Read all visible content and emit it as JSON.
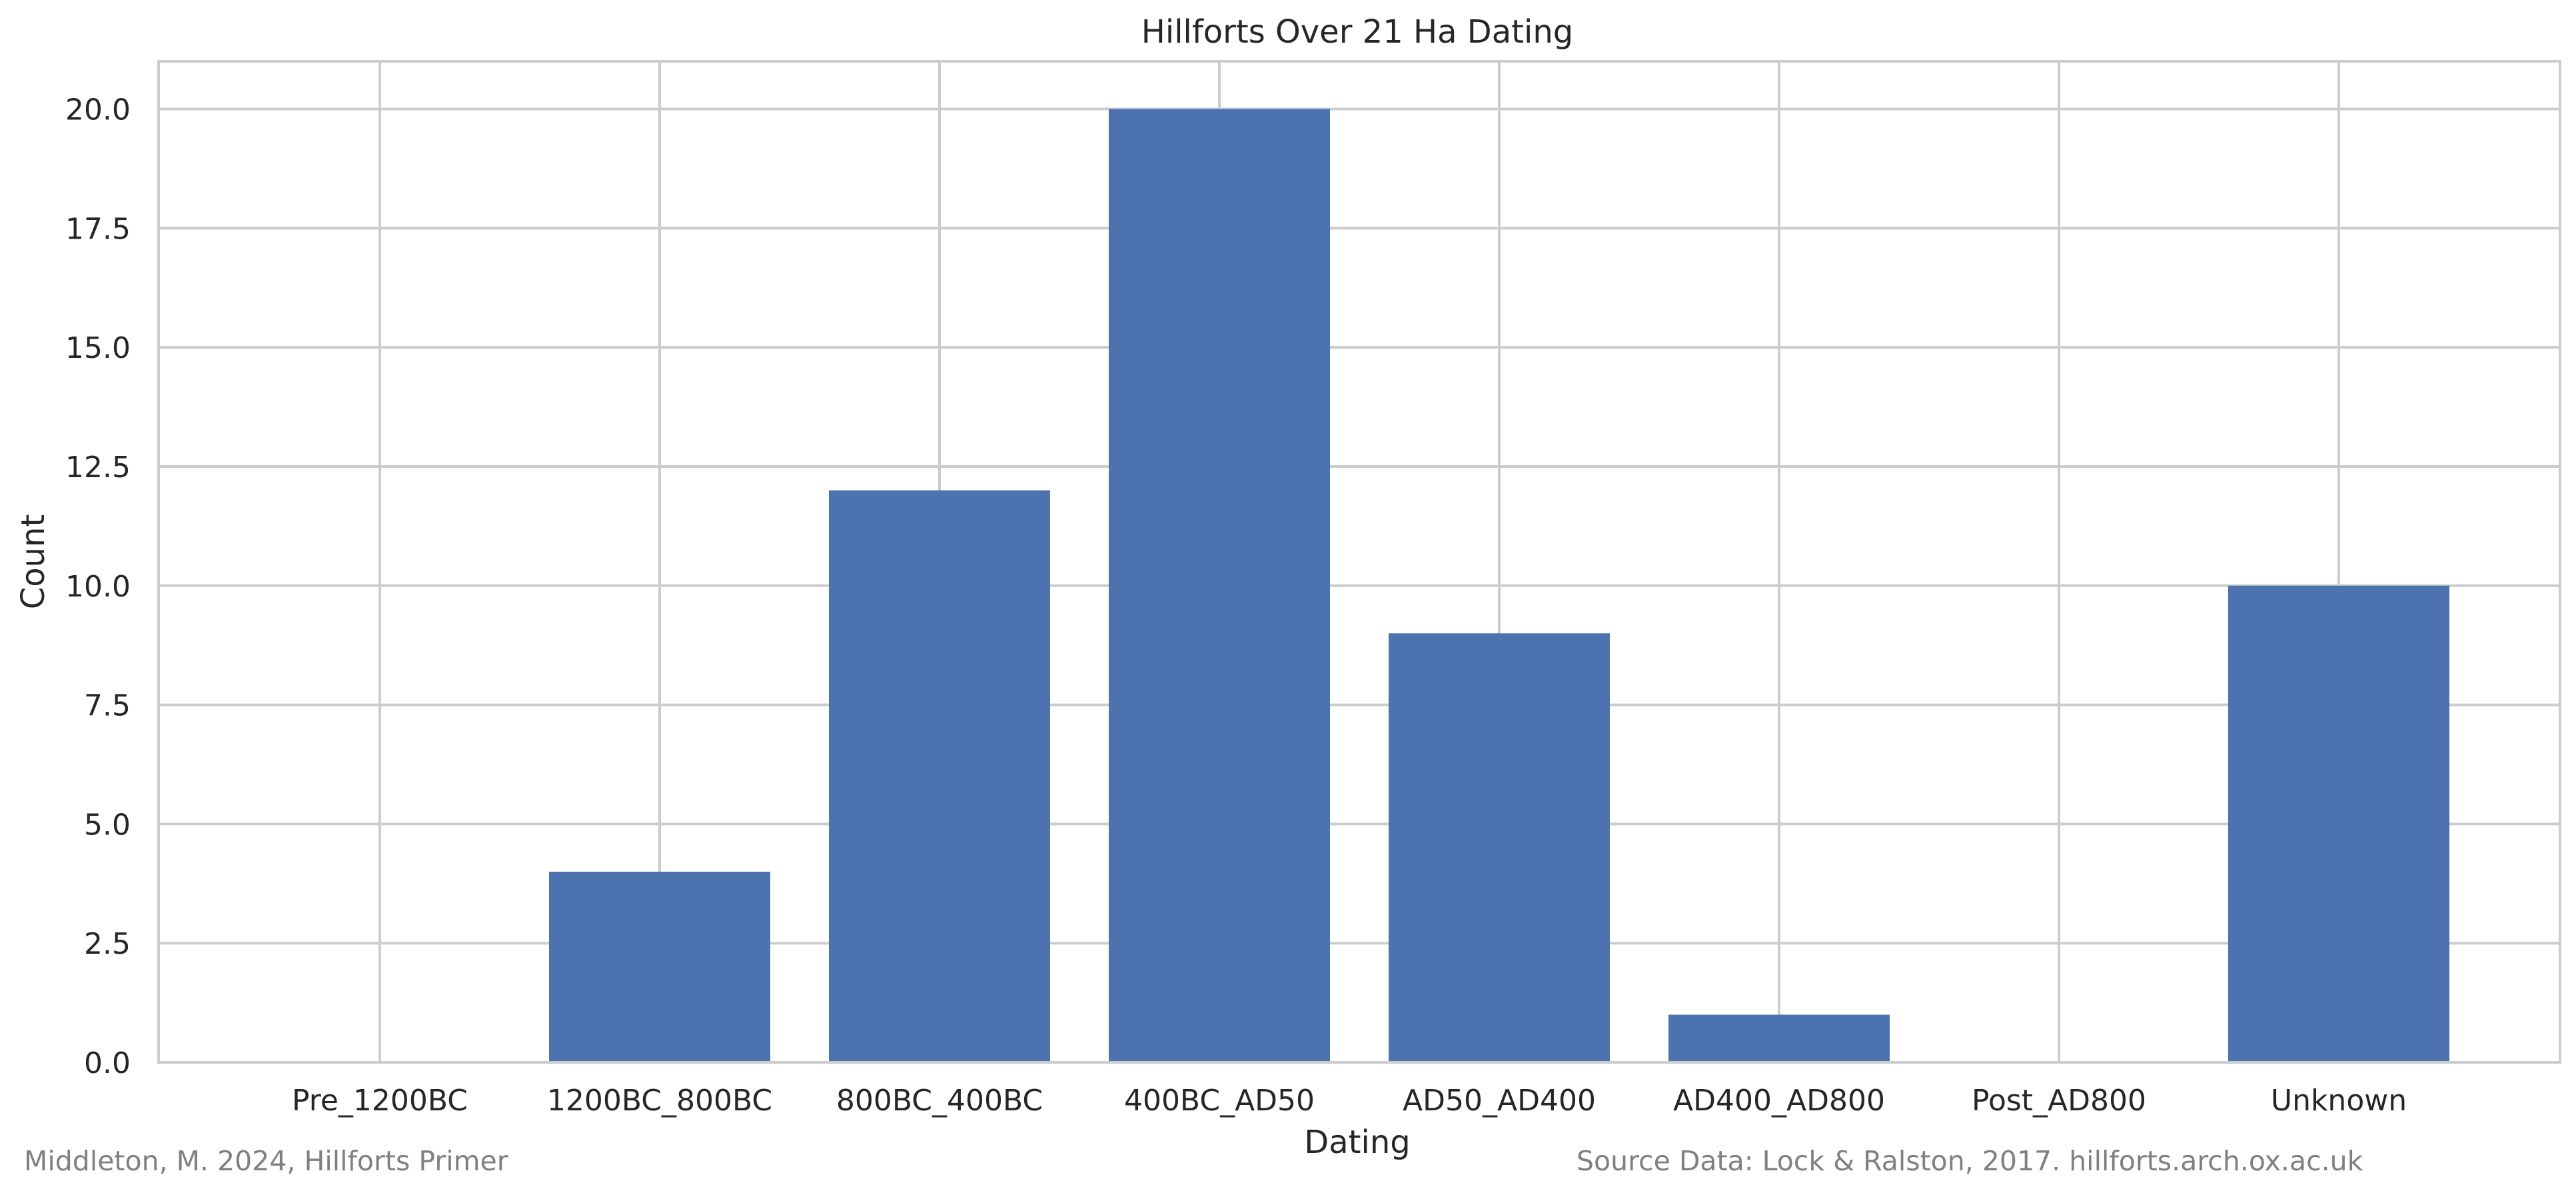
{
  "chart_data": {
    "type": "bar",
    "title": "Hillforts Over 21 Ha Dating",
    "xlabel": "Dating",
    "ylabel": "Count",
    "categories": [
      "Pre_1200BC",
      "1200BC_800BC",
      "800BC_400BC",
      "400BC_AD50",
      "AD50_AD400",
      "AD400_AD800",
      "Post_AD800",
      "Unknown"
    ],
    "values": [
      0,
      4,
      12,
      20,
      9,
      1,
      0,
      10
    ],
    "ylim": [
      0,
      21
    ],
    "yticks": [
      0.0,
      2.5,
      5.0,
      7.5,
      10.0,
      12.5,
      15.0,
      17.5,
      20.0
    ],
    "ytick_labels": [
      "0.0",
      "2.5",
      "5.0",
      "7.5",
      "10.0",
      "12.5",
      "15.0",
      "17.5",
      "20.0"
    ],
    "grid": true,
    "legend": "none",
    "bar_color": "#4c72b0",
    "grid_color": "#cccccc"
  },
  "footer": {
    "left": "Middleton, M. 2024, Hillforts Primer",
    "right": "Source Data: Lock & Ralston, 2017. hillforts.arch.ox.ac.uk"
  }
}
